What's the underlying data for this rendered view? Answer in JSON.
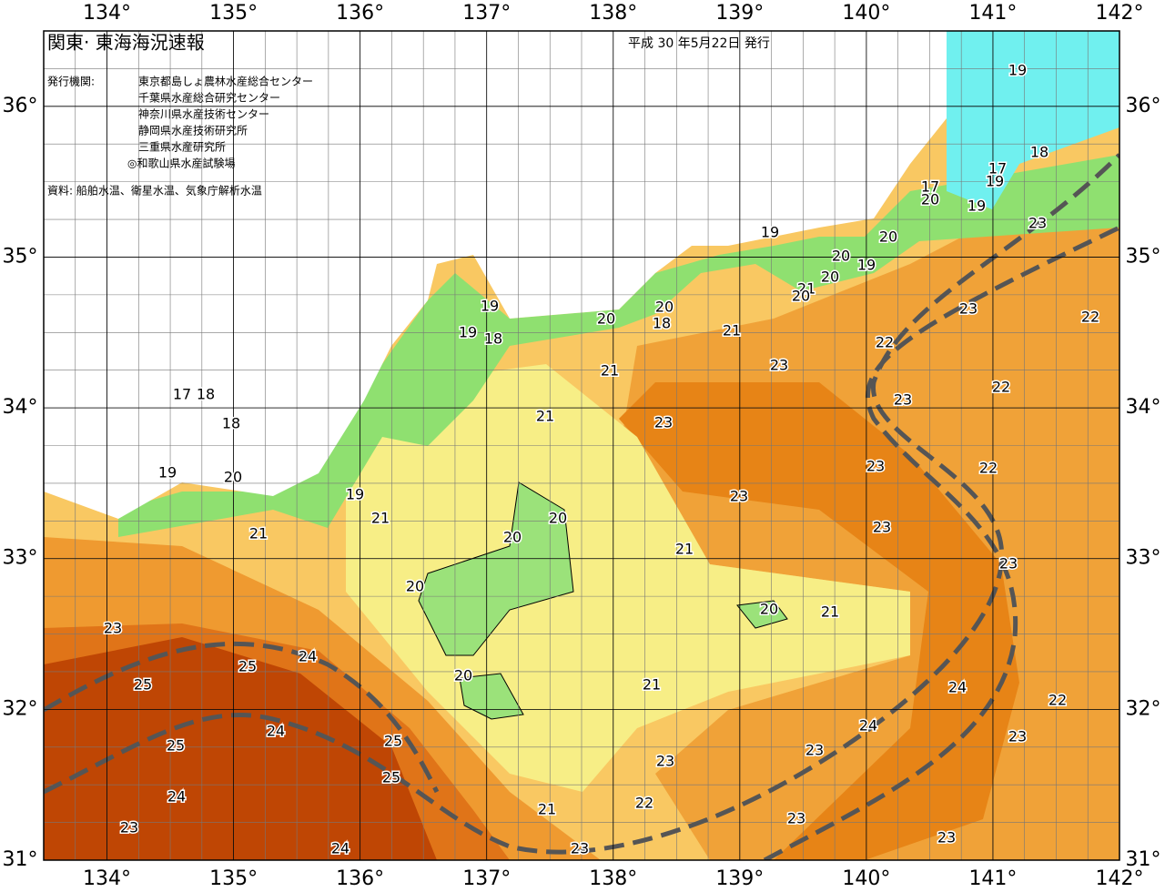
{
  "header": {
    "title": "関東· 東海海況速報",
    "date": "平成 30 年5月22日 発行",
    "issuers_label": "発行機関:",
    "issuers": [
      "東京都島しょ農林水産総合センター",
      "千葉県水産総合研究センター",
      "神奈川県水産技術センター",
      "静岡県水産技術研究所",
      "三重県水産研究所",
      "◎和歌山県水産試験場"
    ],
    "source": "資料: 船舶水温、衛星水温、気象庁解析水温"
  },
  "axes": {
    "lon_ticks": [
      {
        "value": 134,
        "label": "134°"
      },
      {
        "value": 135,
        "label": "135°"
      },
      {
        "value": 136,
        "label": "136°"
      },
      {
        "value": 137,
        "label": "137°"
      },
      {
        "value": 138,
        "label": "138°"
      },
      {
        "value": 139,
        "label": "139°"
      },
      {
        "value": 140,
        "label": "140°"
      },
      {
        "value": 141,
        "label": "141°"
      },
      {
        "value": 142,
        "label": "142°"
      }
    ],
    "lat_ticks": [
      {
        "value": 31,
        "label": "31°"
      },
      {
        "value": 32,
        "label": "32°"
      },
      {
        "value": 33,
        "label": "33°"
      },
      {
        "value": 34,
        "label": "34°"
      },
      {
        "value": 35,
        "label": "35°"
      },
      {
        "value": 36,
        "label": "36°"
      }
    ]
  },
  "contour_labels": [
    19,
    18,
    17,
    19,
    17,
    20,
    19,
    23,
    19,
    20,
    20,
    19,
    20,
    21,
    20,
    20,
    18,
    20,
    21,
    19,
    19,
    18,
    23,
    22,
    22,
    23,
    21,
    17,
    18,
    23,
    22,
    21,
    23,
    18,
    23,
    22,
    19,
    20,
    23,
    19,
    21,
    20,
    23,
    21,
    20,
    21,
    23,
    20,
    20,
    21,
    23,
    24,
    25,
    25,
    20,
    21,
    24,
    22,
    24,
    24,
    23,
    25,
    25,
    23,
    23,
    25,
    24,
    22,
    21,
    23,
    23,
    24,
    23,
    23
  ]
}
